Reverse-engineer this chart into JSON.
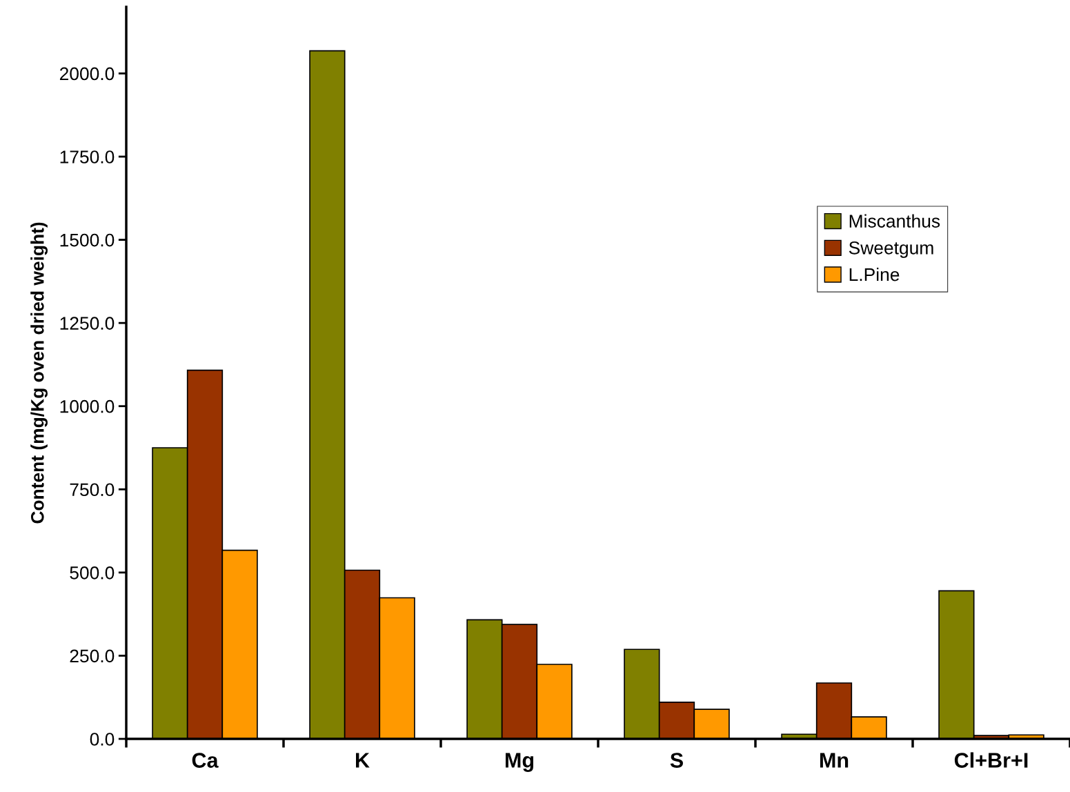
{
  "chart_data": {
    "type": "bar",
    "ylabel": "Content (mg/Kg oven dried weight)",
    "categories": [
      "Ca",
      "K",
      "Mg",
      "S",
      "Mn",
      "Cl+Br+I"
    ],
    "series": [
      {
        "name": "Miscanthus",
        "color": "#808000",
        "values": [
          875,
          2068,
          358,
          269,
          14,
          445
        ]
      },
      {
        "name": "Sweetgum",
        "color": "#993300",
        "values": [
          1108,
          507,
          344,
          110,
          168,
          10
        ]
      },
      {
        "name": "L.Pine",
        "color": "#ff9900",
        "values": [
          567,
          424,
          224,
          89,
          66,
          12
        ]
      }
    ],
    "ylim": [
      0,
      2200
    ],
    "yticks": [
      {
        "value": 0,
        "label": "0.0"
      },
      {
        "value": 250,
        "label": "250.0"
      },
      {
        "value": 500,
        "label": "500.0"
      },
      {
        "value": 750,
        "label": "750.0"
      },
      {
        "value": 1000,
        "label": "1000.0"
      },
      {
        "value": 1250,
        "label": "1250.0"
      },
      {
        "value": 1500,
        "label": "1500.0"
      },
      {
        "value": 1750,
        "label": "1750.0"
      },
      {
        "value": 2000,
        "label": "2000.0"
      }
    ],
    "grid": false,
    "legend": "top right"
  }
}
